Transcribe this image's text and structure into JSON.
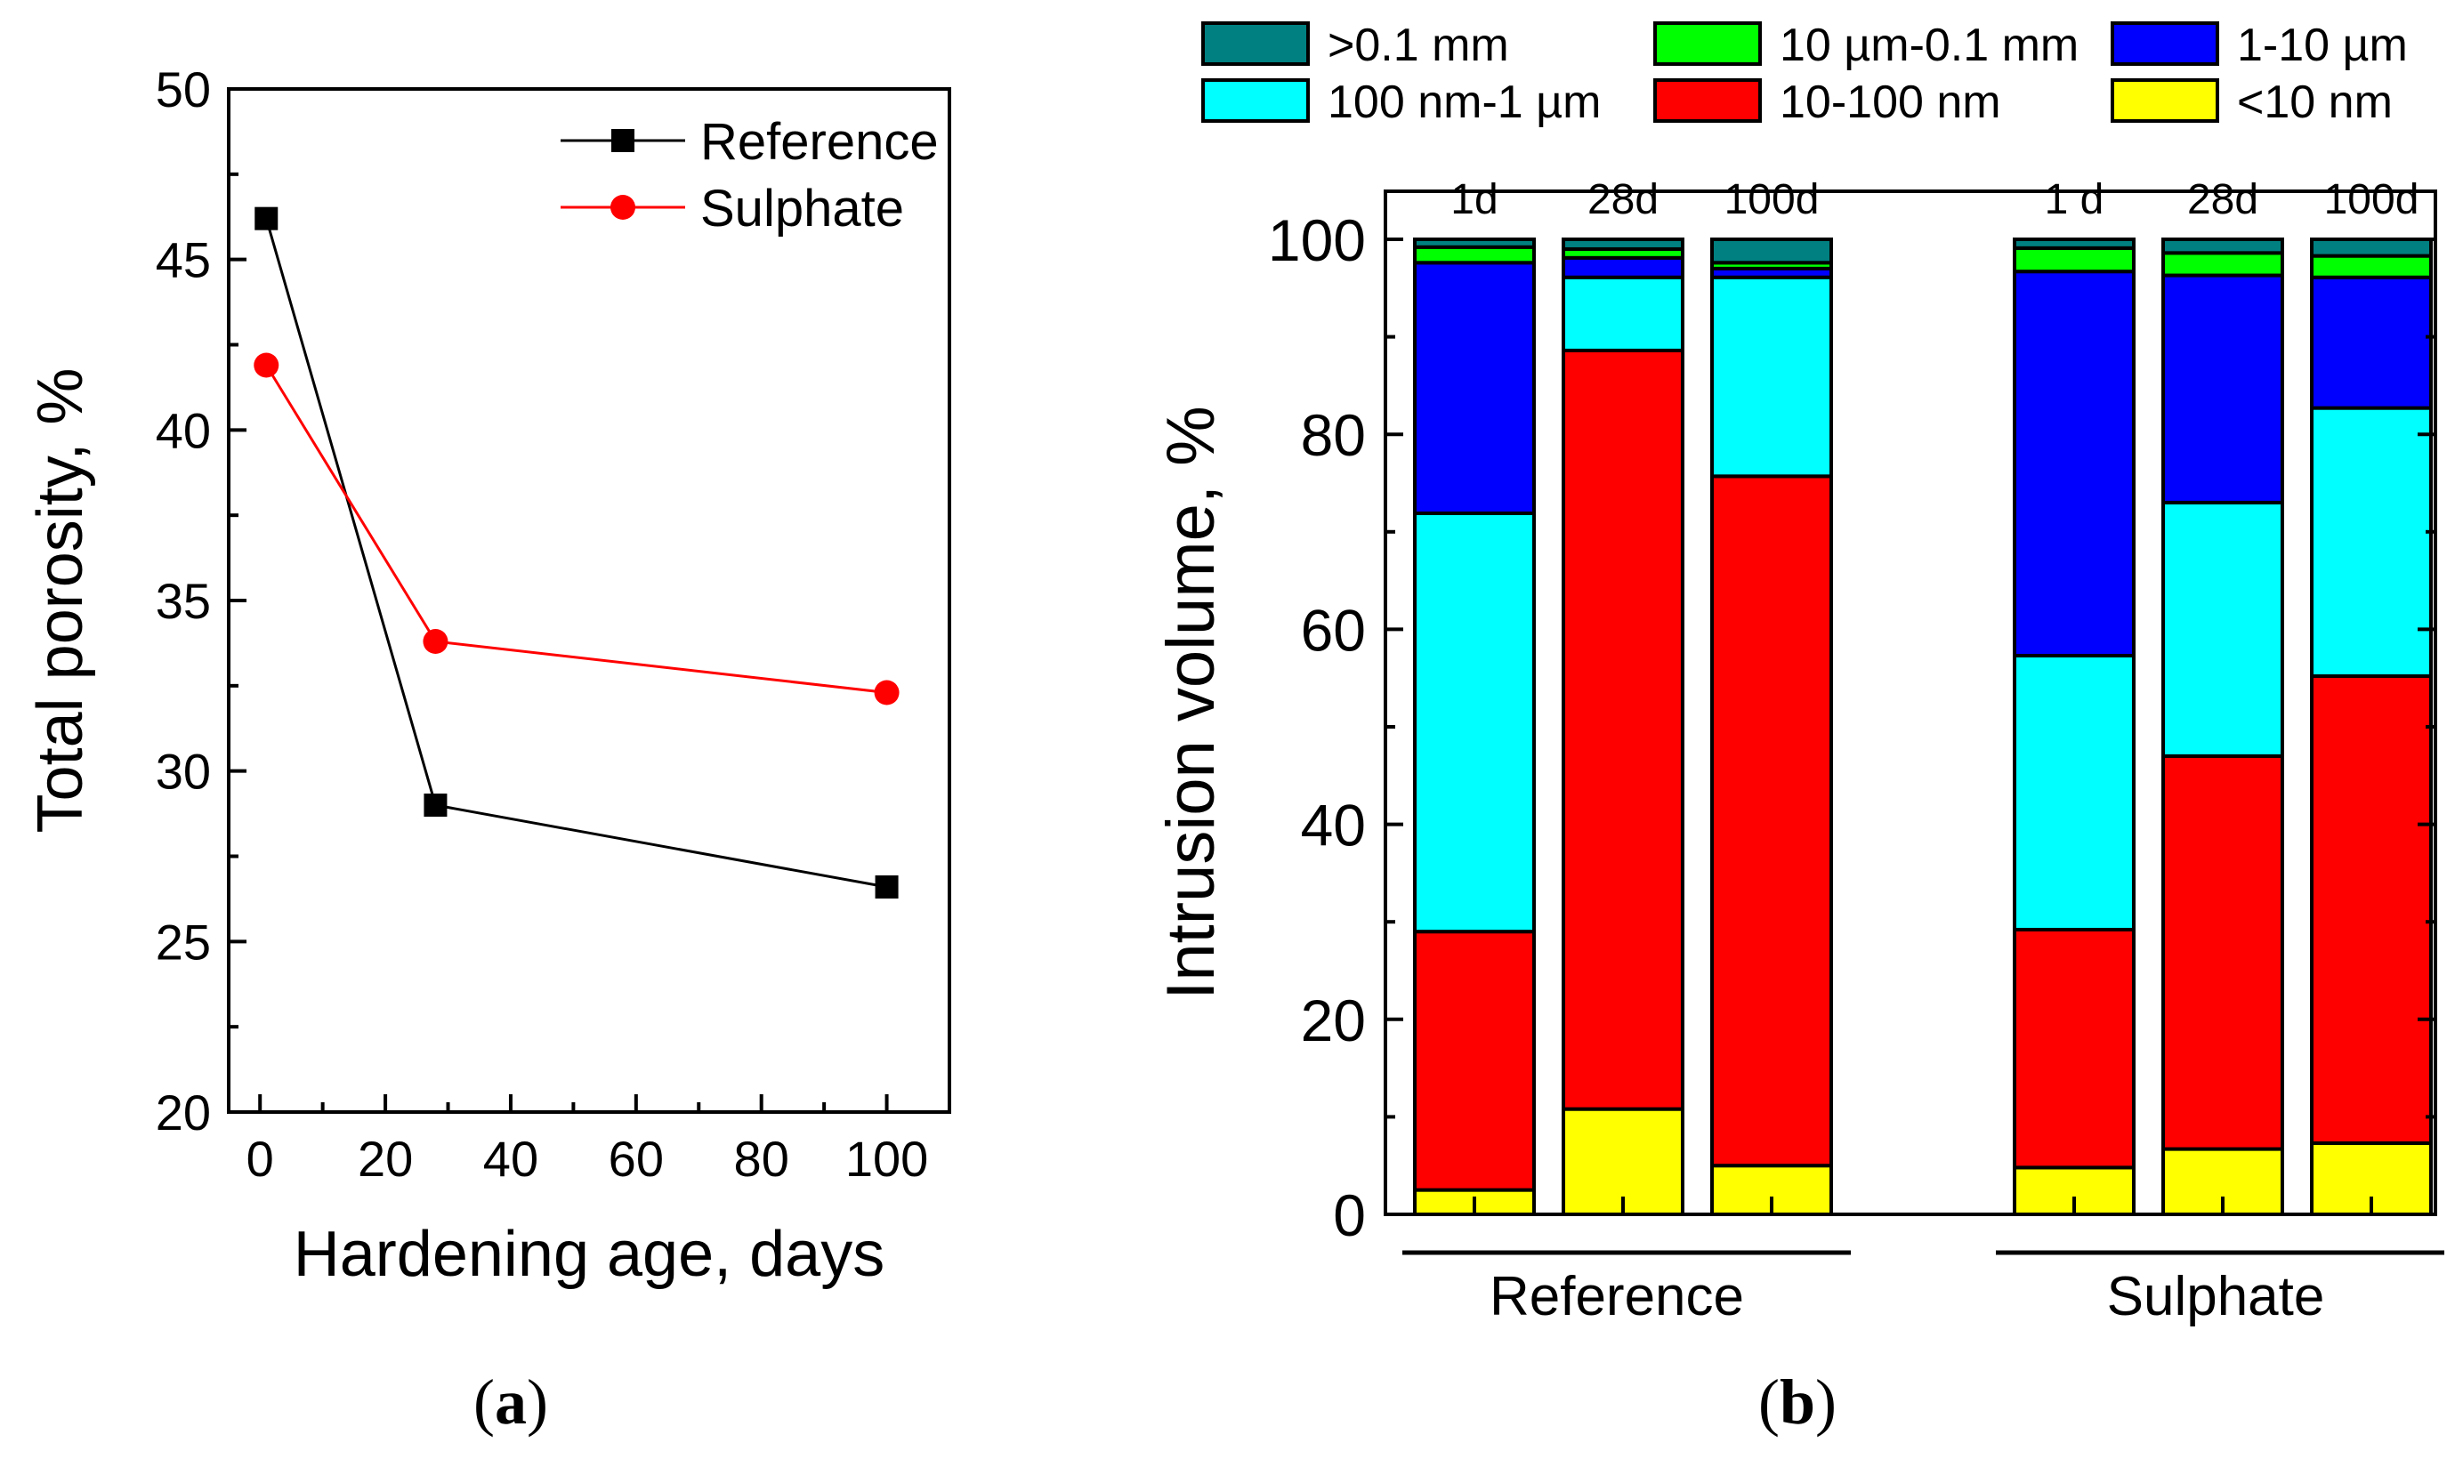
{
  "chart_data": [
    {
      "panel": "a",
      "type": "line",
      "caption_left": "(",
      "caption_letter": "a",
      "caption_right": ")",
      "xlabel": "Hardening age, days",
      "ylabel": "Total porosity, %",
      "xlim": [
        -5,
        110
      ],
      "ylim": [
        20,
        50
      ],
      "xticks": [
        0,
        20,
        40,
        60,
        80,
        100
      ],
      "yticks": [
        20,
        25,
        30,
        35,
        40,
        45,
        50
      ],
      "legend_position": "top-right",
      "series": [
        {
          "name": "Reference",
          "color": "#000000",
          "marker": "square",
          "x": [
            1,
            28,
            100
          ],
          "y": [
            46.2,
            29.0,
            26.6
          ]
        },
        {
          "name": "Sulphate",
          "color": "#ff0000",
          "marker": "circle",
          "x": [
            1,
            28,
            100
          ],
          "y": [
            41.9,
            33.8,
            32.3
          ]
        }
      ]
    },
    {
      "panel": "b",
      "type": "bar",
      "stacked": true,
      "caption_left": "(",
      "caption_letter": "b",
      "caption_right": ")",
      "ylabel": "Intrusion volume, %",
      "ylim": [
        0,
        100
      ],
      "yticks": [
        0,
        20,
        40,
        60,
        80,
        100
      ],
      "legend_position": "top",
      "groups": [
        {
          "label": "Reference",
          "categories": [
            "1d",
            "28d",
            "100d"
          ]
        },
        {
          "label": "Sulphate",
          "categories": [
            "1 d",
            "28d",
            "100d"
          ]
        }
      ],
      "series": [
        {
          "name": "<10 nm",
          "color": "#ffff00",
          "values": [
            2.5,
            10.8,
            5.0,
            4.8,
            6.7,
            7.3
          ]
        },
        {
          "name": "10-100 nm",
          "color": "#ff0000",
          "values": [
            26.5,
            77.8,
            70.7,
            24.4,
            40.3,
            47.9
          ]
        },
        {
          "name": "100 nm-1 µm",
          "color": "#00ffff",
          "values": [
            42.9,
            7.5,
            20.4,
            28.1,
            26.0,
            27.5
          ]
        },
        {
          "name": "1-10 µm",
          "color": "#0000ff",
          "values": [
            25.7,
            2.0,
            0.9,
            39.4,
            23.3,
            13.4
          ]
        },
        {
          "name": "10 µm-0.1 mm",
          "color": "#00ff00",
          "values": [
            1.6,
            0.9,
            0.6,
            2.4,
            2.3,
            2.2
          ]
        },
        {
          "name": ">0.1 mm",
          "color": "#008080",
          "values": [
            0.8,
            1.0,
            2.4,
            0.9,
            1.4,
            1.7
          ]
        }
      ]
    }
  ]
}
